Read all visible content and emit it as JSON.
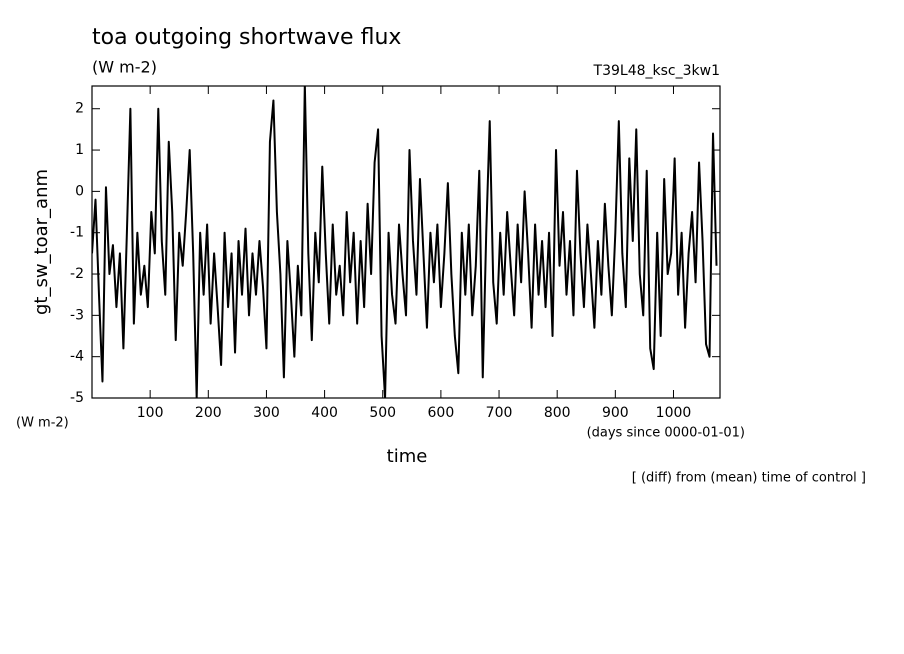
{
  "chart_data": {
    "type": "line",
    "title": "toa outgoing shortwave flux",
    "subtitle": "(W m-2)",
    "run_label": "T39L48_ksc_3kw1",
    "y_label": "gt_sw_toar_anm",
    "y_units": "(W m-2)",
    "x_label": "time",
    "x_units": "(days since 0000-01-01)",
    "note": "[ (diff) from (mean) time of control ]",
    "color": "#000000",
    "xlim": [
      0,
      1080
    ],
    "xticks": [
      100,
      200,
      300,
      400,
      500,
      600,
      700,
      800,
      900,
      1000
    ],
    "ylim": [
      -5,
      2.55
    ],
    "yticks": [
      -5,
      -4,
      -3,
      -2,
      -1,
      0,
      1,
      2
    ],
    "x": [
      0,
      6,
      12,
      18,
      24,
      30,
      36,
      42,
      48,
      54,
      60,
      66,
      72,
      78,
      84,
      90,
      96,
      102,
      108,
      114,
      120,
      126,
      132,
      138,
      144,
      150,
      156,
      162,
      168,
      174,
      180,
      186,
      192,
      198,
      204,
      210,
      216,
      222,
      228,
      234,
      240,
      246,
      252,
      258,
      264,
      270,
      276,
      282,
      288,
      294,
      300,
      306,
      312,
      318,
      324,
      330,
      336,
      342,
      348,
      354,
      360,
      366,
      372,
      378,
      384,
      390,
      396,
      402,
      408,
      414,
      420,
      426,
      432,
      438,
      444,
      450,
      456,
      462,
      468,
      474,
      480,
      486,
      492,
      498,
      504,
      510,
      516,
      522,
      528,
      534,
      540,
      546,
      552,
      558,
      564,
      570,
      576,
      582,
      588,
      594,
      600,
      606,
      612,
      618,
      624,
      630,
      636,
      642,
      648,
      654,
      660,
      666,
      672,
      678,
      684,
      690,
      696,
      702,
      708,
      714,
      720,
      726,
      732,
      738,
      744,
      750,
      756,
      762,
      768,
      774,
      780,
      786,
      792,
      798,
      804,
      810,
      816,
      822,
      828,
      834,
      840,
      846,
      852,
      858,
      864,
      870,
      876,
      882,
      888,
      894,
      900,
      906,
      912,
      918,
      924,
      930,
      936,
      942,
      948,
      954,
      960,
      966,
      972,
      978,
      984,
      990,
      996,
      1002,
      1008,
      1014,
      1020,
      1026,
      1032,
      1038,
      1044,
      1050,
      1056,
      1062,
      1068,
      1074
    ],
    "values": [
      -1.5,
      -0.2,
      -2.5,
      -4.6,
      0.1,
      -2.0,
      -1.3,
      -2.8,
      -1.5,
      -3.8,
      -1.0,
      2.0,
      -3.2,
      -1.0,
      -2.5,
      -1.8,
      -2.8,
      -0.5,
      -1.5,
      2.0,
      -1.2,
      -2.5,
      1.2,
      -0.5,
      -3.6,
      -1.0,
      -1.8,
      -0.5,
      1.0,
      -1.5,
      -5.0,
      -1.0,
      -2.5,
      -0.8,
      -3.2,
      -1.5,
      -2.8,
      -4.2,
      -1.0,
      -2.8,
      -1.5,
      -3.9,
      -1.2,
      -2.5,
      -0.9,
      -3.0,
      -1.5,
      -2.5,
      -1.2,
      -2.3,
      -3.8,
      1.2,
      2.2,
      -0.5,
      -2.0,
      -4.5,
      -1.2,
      -2.5,
      -4.0,
      -1.8,
      -3.0,
      2.6,
      -1.5,
      -3.6,
      -1.0,
      -2.2,
      0.6,
      -1.5,
      -3.2,
      -0.8,
      -2.5,
      -1.8,
      -3.0,
      -0.5,
      -2.2,
      -1.0,
      -3.2,
      -1.2,
      -2.8,
      -0.3,
      -2.0,
      0.7,
      1.5,
      -3.5,
      -5.0,
      -1.0,
      -2.5,
      -3.2,
      -0.8,
      -2.0,
      -3.0,
      1.0,
      -1.2,
      -2.5,
      0.3,
      -1.5,
      -3.3,
      -1.0,
      -2.2,
      -0.8,
      -2.8,
      -1.5,
      0.2,
      -2.0,
      -3.5,
      -4.4,
      -1.0,
      -2.5,
      -0.8,
      -3.0,
      -1.8,
      0.5,
      -4.5,
      -1.0,
      1.7,
      -2.2,
      -3.2,
      -1.0,
      -2.5,
      -0.5,
      -1.8,
      -3.0,
      -0.8,
      -2.2,
      0.0,
      -1.5,
      -3.3,
      -0.8,
      -2.5,
      -1.2,
      -2.8,
      -1.0,
      -3.5,
      1.0,
      -1.8,
      -0.5,
      -2.5,
      -1.2,
      -3.0,
      0.5,
      -1.5,
      -2.8,
      -0.8,
      -2.0,
      -3.3,
      -1.2,
      -2.5,
      -0.3,
      -1.8,
      -3.0,
      -1.0,
      1.7,
      -1.5,
      -2.8,
      0.8,
      -1.2,
      1.5,
      -2.0,
      -3.0,
      0.5,
      -3.8,
      -4.3,
      -1.0,
      -3.5,
      0.3,
      -2.0,
      -1.5,
      0.8,
      -2.5,
      -1.0,
      -3.3,
      -1.5,
      -0.5,
      -2.2,
      0.7,
      -1.2,
      -3.7,
      -4.0,
      1.4,
      -1.8
    ]
  }
}
